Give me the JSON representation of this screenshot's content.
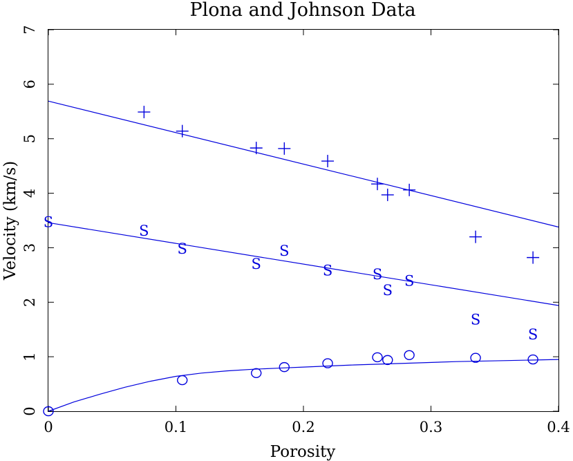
{
  "chart_data": {
    "type": "scatter",
    "title": "Plona and Johnson Data",
    "xlabel": "Porosity",
    "ylabel": "Velocity (km/s)",
    "xlim": [
      0,
      0.4
    ],
    "ylim": [
      0,
      7
    ],
    "xticks": [
      0,
      0.1,
      0.2,
      0.3,
      0.4
    ],
    "xtick_labels": [
      "0",
      "0.1",
      "0.2",
      "0.3",
      "0.4"
    ],
    "yticks": [
      0,
      1,
      2,
      3,
      4,
      5,
      6,
      7
    ],
    "ytick_labels": [
      "0",
      "1",
      "2",
      "3",
      "4",
      "5",
      "6",
      "7"
    ],
    "grid": false,
    "color": "#0000dd",
    "series": [
      {
        "marker": "plus",
        "x": [
          0.075,
          0.105,
          0.163,
          0.185,
          0.219,
          0.258,
          0.266,
          0.283,
          0.335,
          0.38
        ],
        "y": [
          5.49,
          5.14,
          4.83,
          4.82,
          4.59,
          4.17,
          3.97,
          4.06,
          3.2,
          2.82
        ]
      },
      {
        "marker": "S",
        "symbol": "S",
        "x": [
          0.0,
          0.075,
          0.105,
          0.163,
          0.185,
          0.219,
          0.258,
          0.266,
          0.283,
          0.335,
          0.38
        ],
        "y": [
          3.47,
          3.31,
          2.98,
          2.7,
          2.94,
          2.58,
          2.51,
          2.22,
          2.39,
          1.68,
          1.41
        ]
      },
      {
        "marker": "circle",
        "x": [
          0.0,
          0.105,
          0.163,
          0.185,
          0.219,
          0.258,
          0.266,
          0.283,
          0.335,
          0.38
        ],
        "y": [
          0.0,
          0.57,
          0.7,
          0.81,
          0.88,
          0.99,
          0.94,
          1.03,
          0.98,
          0.95
        ]
      }
    ],
    "fit_lines": [
      {
        "kind": "line",
        "x": [
          0,
          0.4
        ],
        "y": [
          5.69,
          3.38
        ]
      },
      {
        "kind": "line",
        "x": [
          0,
          0.4
        ],
        "y": [
          3.46,
          1.94
        ]
      },
      {
        "kind": "curve",
        "x": [
          0,
          0.02,
          0.04,
          0.06,
          0.08,
          0.1,
          0.12,
          0.14,
          0.16,
          0.18,
          0.2,
          0.24,
          0.28,
          0.32,
          0.36,
          0.4
        ],
        "y": [
          0.0,
          0.17,
          0.31,
          0.44,
          0.55,
          0.64,
          0.7,
          0.74,
          0.77,
          0.79,
          0.81,
          0.85,
          0.88,
          0.91,
          0.93,
          0.95
        ]
      }
    ]
  }
}
